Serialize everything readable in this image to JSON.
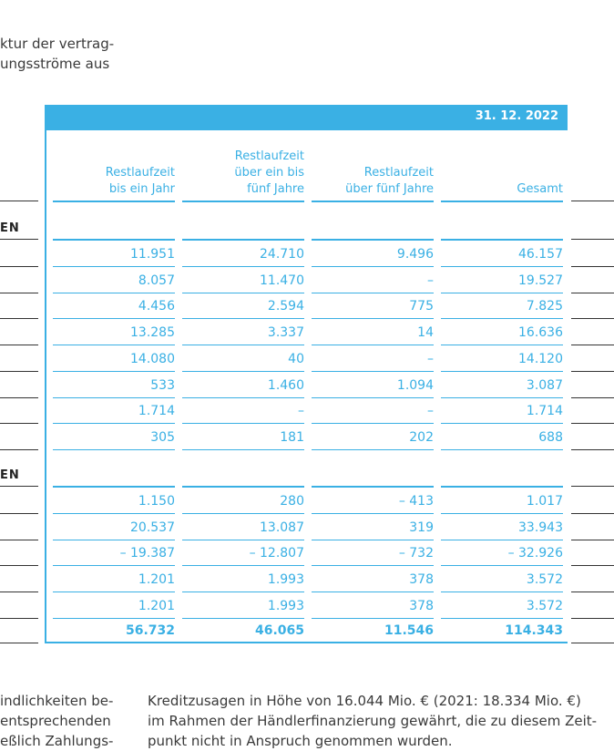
{
  "top_paragraph": [
    "ktur der vertrag-",
    "ungsströme aus"
  ],
  "table": {
    "date": "31. 12. 2022",
    "column_headers": [
      [
        "Restlaufzeit",
        "bis ein Jahr"
      ],
      [
        "Restlaufzeit",
        "über ein bis",
        "fünf Jahre"
      ],
      [
        "Restlaufzeit",
        "über fünf Jahre"
      ],
      [
        "Gesamt"
      ]
    ],
    "section_labels": [
      "EN",
      "EN"
    ],
    "section1_rows": [
      [
        "11.951",
        "24.710",
        "9.496",
        "46.157"
      ],
      [
        "8.057",
        "11.470",
        "–",
        "19.527"
      ],
      [
        "4.456",
        "2.594",
        "775",
        "7.825"
      ],
      [
        "13.285",
        "3.337",
        "14",
        "16.636"
      ],
      [
        "14.080",
        "40",
        "–",
        "14.120"
      ],
      [
        "533",
        "1.460",
        "1.094",
        "3.087"
      ],
      [
        "1.714",
        "–",
        "–",
        "1.714"
      ],
      [
        "305",
        "181",
        "202",
        "688"
      ]
    ],
    "section2_rows": [
      [
        "1.150",
        "280",
        "– 413",
        "1.017"
      ],
      [
        "20.537",
        "13.087",
        "319",
        "33.943"
      ],
      [
        "– 19.387",
        "– 12.807",
        "– 732",
        "– 32.926"
      ],
      [
        "1.201",
        "1.993",
        "378",
        "3.572"
      ],
      [
        "1.201",
        "1.993",
        "378",
        "3.572"
      ]
    ],
    "total_row": [
      "56.732",
      "46.065",
      "11.546",
      "114.343"
    ]
  },
  "bottom_left": [
    "indlichkeiten be-",
    "entsprechenden",
    "eßlich Zahlungs-"
  ],
  "bottom_right": [
    "Kreditzusagen in Höhe von 16.044 Mio. € (2021: 18.334 Mio. €)",
    "im Rahmen der Händlerfinanzierung gewährt, die zu diesem Zeit-",
    "punkt nicht in Anspruch genommen wurden."
  ]
}
